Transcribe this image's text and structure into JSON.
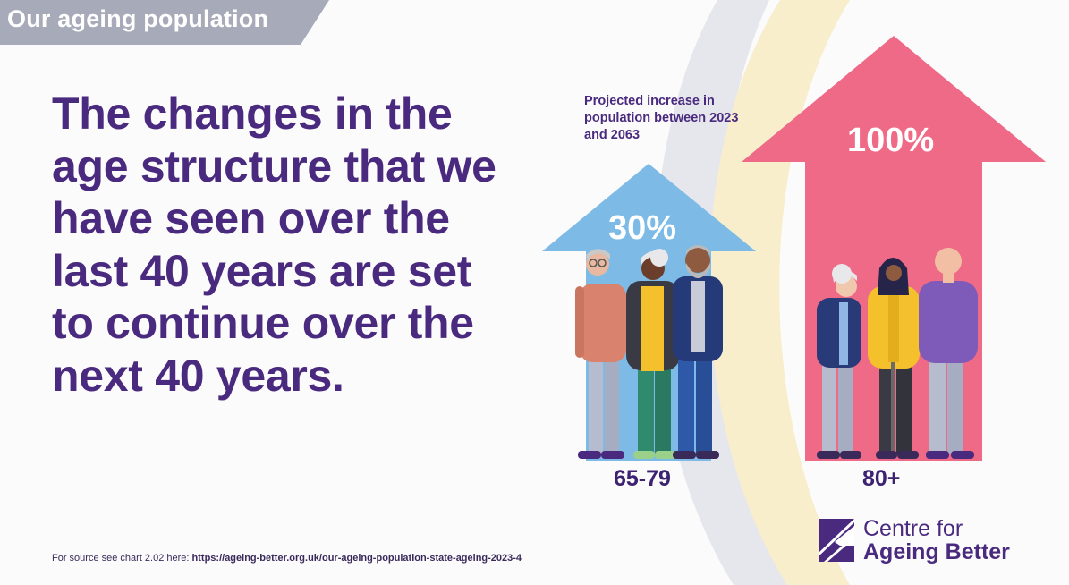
{
  "section_tab": "Our ageing population",
  "headline": "The changes in the age structure that we have seen over the last 40 years are set to continue over the next 40 years.",
  "chart_data": {
    "type": "bar",
    "title": "Projected increase in population between 2023 and 2063",
    "categories": [
      "65-79",
      "80+"
    ],
    "values": [
      30,
      100
    ],
    "data_labels": [
      "30%",
      "100%"
    ],
    "unit": "%"
  },
  "source": {
    "prefix": "For source see chart 2.02 here:",
    "url": "https://ageing-better.org.uk/our-ageing-population-state-ageing-2023-4"
  },
  "logo": {
    "line1": "Centre for",
    "line2": "Ageing Better"
  },
  "colors": {
    "purple": "#4a2a7e",
    "tab_grey": "#a6aab9",
    "arrow_blue": "#7dbbe6",
    "arrow_pink": "#ee6a87",
    "arc_grey": "#e6e7ec",
    "arc_cream": "#f8eecc"
  }
}
